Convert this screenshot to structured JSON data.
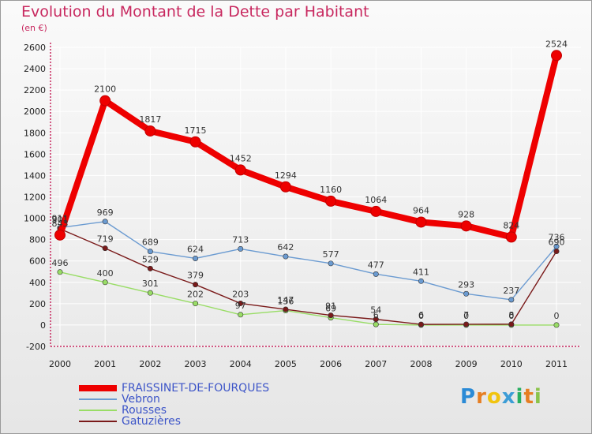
{
  "chart_data": {
    "type": "line",
    "title": "Evolution du Montant de la Dette par Habitant",
    "unit_label": "(en €)",
    "xlabel": "",
    "ylabel": "",
    "x": [
      "2000",
      "2001",
      "2002",
      "2003",
      "2004",
      "2005",
      "2006",
      "2007",
      "2008",
      "2009",
      "2010",
      "2011"
    ],
    "ylim": [
      -200,
      2600
    ],
    "yticks": [
      -200,
      0,
      200,
      400,
      600,
      800,
      1000,
      1200,
      1400,
      1600,
      1800,
      2000,
      2200,
      2400,
      2600
    ],
    "grid": true,
    "series": [
      {
        "name": "FRAISSINET-DE-FOURQUES",
        "color": "#ee0000",
        "values": [
          843,
          2100,
          1817,
          1715,
          1452,
          1294,
          1160,
          1064,
          964,
          928,
          824,
          2524
        ],
        "labels": [
          "843",
          "2100",
          "1817",
          "1715",
          "1452",
          "1294",
          "1160",
          "1064",
          "964",
          "928",
          "824",
          "2524"
        ]
      },
      {
        "name": "Vebron",
        "color": "#6b9bd1",
        "values": [
          911,
          969,
          689,
          624,
          713,
          642,
          577,
          477,
          411,
          293,
          237,
          736
        ],
        "labels": [
          "911",
          "969",
          "689",
          "624",
          "713",
          "642",
          "577",
          "477",
          "411",
          "293",
          "237",
          "736"
        ]
      },
      {
        "name": "Rousses",
        "color": "#99dd66",
        "values": [
          496,
          400,
          301,
          202,
          97,
          136,
          69,
          6,
          0,
          0,
          0,
          0
        ],
        "labels": [
          "496",
          "400",
          "301",
          "202",
          "97",
          "136",
          "69",
          "6",
          "0",
          "0",
          "0",
          "0"
        ]
      },
      {
        "name": "Gatuzières",
        "color": "#7a1a1a",
        "values": [
          901,
          719,
          529,
          379,
          203,
          147,
          91,
          54,
          6,
          7,
          8,
          690
        ],
        "labels": [
          "901",
          "719",
          "529",
          "379",
          "203",
          "147",
          "91",
          "54",
          "6",
          "7",
          "8",
          "690"
        ]
      }
    ],
    "legend_position": "bottom-left"
  },
  "brand": {
    "letters": [
      "P",
      "r",
      "o",
      "x",
      "i",
      "t",
      "i"
    ],
    "colors": [
      "#2a8ad6",
      "#e67e22",
      "#f1c40f",
      "#3c9dd6",
      "#27ae60",
      "#e67e22",
      "#8bc34a"
    ]
  }
}
